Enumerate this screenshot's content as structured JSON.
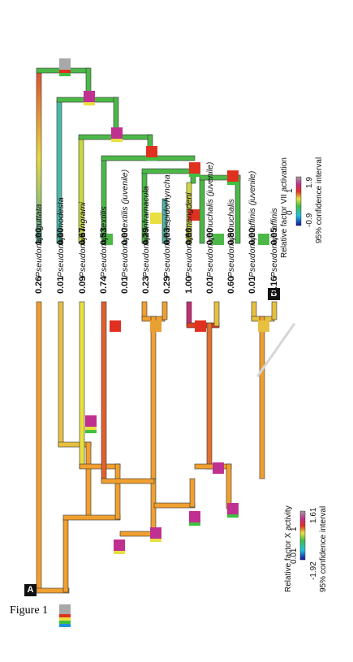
{
  "figure_title": "Figure 1",
  "panel_a": {
    "letter": "A",
    "values": [
      "0.26",
      "0.01",
      "0.09",
      "0.74",
      "0.01",
      "0.23",
      "0.29",
      "1.00",
      "0.01",
      "0.60",
      "0.01",
      "0.16"
    ],
    "legend": {
      "title": "Relative factor X activity",
      "subtitle": "95% confidence interval",
      "min": "-1.92",
      "mid_left": "0.01",
      "mid_right": "1",
      "max": "1.61"
    }
  },
  "panel_b": {
    "letter": "B",
    "values": [
      "1.00",
      "0.00",
      "0.67",
      "0.53",
      "0.00",
      "0.29",
      "0.03",
      "0.66",
      "0.00",
      "0.80",
      "0.00",
      "0.05"
    ],
    "legend": {
      "title": "Relative factor VII activation",
      "subtitle": "95% confidence interval",
      "min": "-0.9",
      "mid_left": "0",
      "mid_right": "1",
      "max": "1.9"
    }
  },
  "species": [
    "Pseudonaja guttata",
    "Pseudonaja modesta",
    "Pseudonaja ingrami",
    "Pseudonaja textilis",
    "Pseudonaja textilis (juvenile)",
    "Pseudonaja inframacula",
    "Pseudonaja aspidorhyncha",
    "Pseudonaja mengdeni",
    "Pseudonaja nuchalis (juvenile)",
    "Pseudonaja nuchalis",
    "Pseudonaja affinis (juvenile)",
    "Pseudonaja affinis"
  ],
  "colors": {
    "orange": "#f0a030",
    "yellow": "#e8d840",
    "green": "#4cb848",
    "red": "#e03020",
    "magenta": "#c03090"
  }
}
